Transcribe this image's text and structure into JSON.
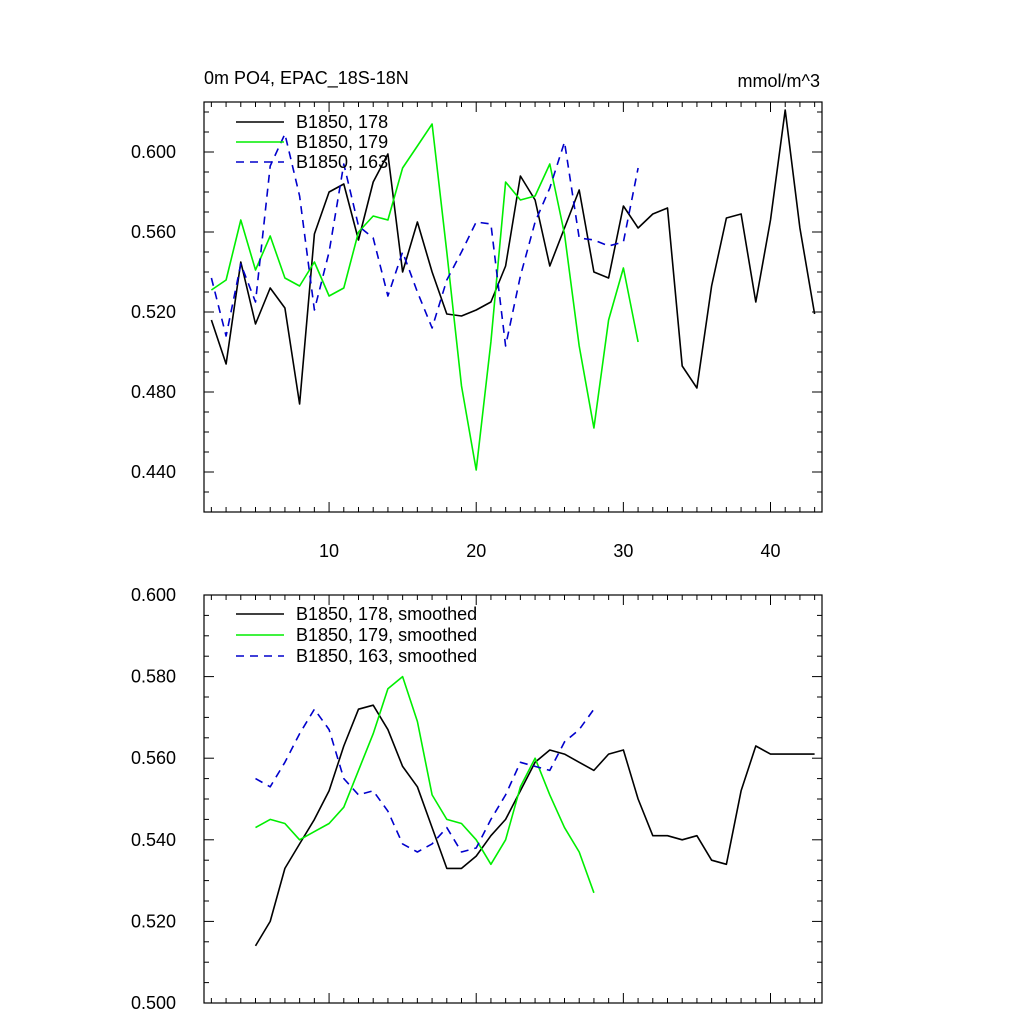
{
  "chart_data": [
    {
      "type": "line",
      "title": "0m PO4, EPAC_18S-18N",
      "units": "mmol/m^3",
      "xlim": [
        1.5,
        43.5
      ],
      "ylim": [
        0.42,
        0.625
      ],
      "xticks": [
        10,
        20,
        30,
        40
      ],
      "yticks": [
        0.44,
        0.48,
        0.52,
        0.56,
        0.6
      ],
      "ytick_labels": [
        "0.440",
        "0.480",
        "0.520",
        "0.560",
        "0.600"
      ],
      "legend_position": "top-left",
      "series": [
        {
          "name": "B1850, 178",
          "color": "#000000",
          "dash": "solid",
          "x": [
            2,
            3,
            4,
            5,
            6,
            7,
            8,
            9,
            10,
            11,
            12,
            13,
            14,
            15,
            16,
            17,
            18,
            19,
            20,
            21,
            22,
            23,
            24,
            25,
            26,
            27,
            28,
            29,
            30,
            31,
            32,
            33,
            34,
            35,
            36,
            37,
            38,
            39,
            40,
            41,
            42,
            43
          ],
          "y": [
            0.516,
            0.494,
            0.545,
            0.514,
            0.532,
            0.522,
            0.474,
            0.559,
            0.58,
            0.584,
            0.556,
            0.585,
            0.599,
            0.54,
            0.565,
            0.54,
            0.519,
            0.518,
            0.521,
            0.525,
            0.543,
            0.588,
            0.576,
            0.543,
            0.562,
            0.581,
            0.54,
            0.537,
            0.573,
            0.562,
            0.569,
            0.572,
            0.493,
            0.482,
            0.533,
            0.567,
            0.569,
            0.525,
            0.566,
            0.621,
            0.562,
            0.519
          ]
        },
        {
          "name": "B1850, 179",
          "color": "#00ee00",
          "dash": "solid",
          "x": [
            2,
            3,
            4,
            5,
            6,
            7,
            8,
            9,
            10,
            11,
            12,
            13,
            14,
            15,
            16,
            17,
            18,
            19,
            20,
            21,
            22,
            23,
            24,
            25,
            26,
            27,
            28,
            29,
            30,
            31
          ],
          "y": [
            0.531,
            0.536,
            0.566,
            0.541,
            0.558,
            0.537,
            0.533,
            0.545,
            0.528,
            0.532,
            0.56,
            0.568,
            0.566,
            0.592,
            0.603,
            0.614,
            0.55,
            0.483,
            0.441,
            0.505,
            0.585,
            0.576,
            0.578,
            0.594,
            0.559,
            0.503,
            0.462,
            0.516,
            0.542,
            0.505
          ]
        },
        {
          "name": "B1850, 163",
          "color": "#0000cc",
          "dash": "8,6",
          "x": [
            2,
            3,
            4,
            5,
            6,
            7,
            8,
            9,
            10,
            11,
            12,
            13,
            14,
            15,
            16,
            17,
            18,
            19,
            20,
            21,
            22,
            23,
            24,
            25,
            26,
            27,
            28,
            29,
            30,
            31
          ],
          "y": [
            0.537,
            0.508,
            0.544,
            0.525,
            0.593,
            0.609,
            0.578,
            0.521,
            0.55,
            0.594,
            0.563,
            0.557,
            0.528,
            0.55,
            0.53,
            0.512,
            0.536,
            0.55,
            0.565,
            0.564,
            0.503,
            0.538,
            0.565,
            0.582,
            0.605,
            0.557,
            0.556,
            0.553,
            0.555,
            0.592
          ]
        }
      ]
    },
    {
      "type": "line",
      "xlim": [
        1.5,
        43.5
      ],
      "ylim": [
        0.5,
        0.6
      ],
      "xticks": [
        10,
        20,
        30,
        40
      ],
      "yticks": [
        0.5,
        0.52,
        0.54,
        0.56,
        0.58,
        0.6
      ],
      "ytick_labels": [
        "0.500",
        "0.520",
        "0.540",
        "0.560",
        "0.580",
        "0.600"
      ],
      "legend_position": "top-left",
      "series": [
        {
          "name": "B1850, 178, smoothed",
          "color": "#000000",
          "dash": "solid",
          "x": [
            5,
            6,
            7,
            8,
            9,
            10,
            11,
            12,
            13,
            14,
            15,
            16,
            17,
            18,
            19,
            20,
            21,
            22,
            23,
            24,
            25,
            26,
            27,
            28,
            29,
            30,
            31,
            32,
            33,
            34,
            35,
            36,
            37,
            38,
            39,
            40,
            41,
            42,
            43
          ],
          "y": [
            0.514,
            0.52,
            0.533,
            0.539,
            0.545,
            0.552,
            0.563,
            0.572,
            0.573,
            0.567,
            0.558,
            0.553,
            0.543,
            0.533,
            0.533,
            0.536,
            0.541,
            0.545,
            0.552,
            0.559,
            0.562,
            0.561,
            0.559,
            0.557,
            0.561,
            0.562,
            0.55,
            0.541,
            0.541,
            0.54,
            0.541,
            0.535,
            0.534,
            0.552,
            0.563,
            0.561,
            0.561,
            0.561,
            0.561
          ]
        },
        {
          "name": "B1850, 179, smoothed",
          "color": "#00ee00",
          "dash": "solid",
          "x": [
            5,
            6,
            7,
            8,
            9,
            10,
            11,
            12,
            13,
            14,
            15,
            16,
            17,
            18,
            19,
            20,
            21,
            22,
            23,
            24,
            25,
            26,
            27,
            28
          ],
          "y": [
            0.543,
            0.545,
            0.544,
            0.54,
            0.542,
            0.544,
            0.548,
            0.557,
            0.566,
            0.577,
            0.58,
            0.569,
            0.551,
            0.545,
            0.544,
            0.54,
            0.534,
            0.54,
            0.553,
            0.56,
            0.551,
            0.543,
            0.537,
            0.527
          ]
        },
        {
          "name": "B1850, 163, smoothed",
          "color": "#0000cc",
          "dash": "8,6",
          "x": [
            5,
            6,
            7,
            8,
            9,
            10,
            11,
            12,
            13,
            14,
            15,
            16,
            17,
            18,
            19,
            20,
            21,
            22,
            23,
            24,
            25,
            26,
            27,
            28
          ],
          "y": [
            0.555,
            0.553,
            0.559,
            0.566,
            0.572,
            0.567,
            0.555,
            0.551,
            0.552,
            0.547,
            0.539,
            0.537,
            0.539,
            0.543,
            0.537,
            0.538,
            0.545,
            0.551,
            0.559,
            0.558,
            0.557,
            0.564,
            0.567,
            0.572
          ]
        }
      ]
    }
  ]
}
